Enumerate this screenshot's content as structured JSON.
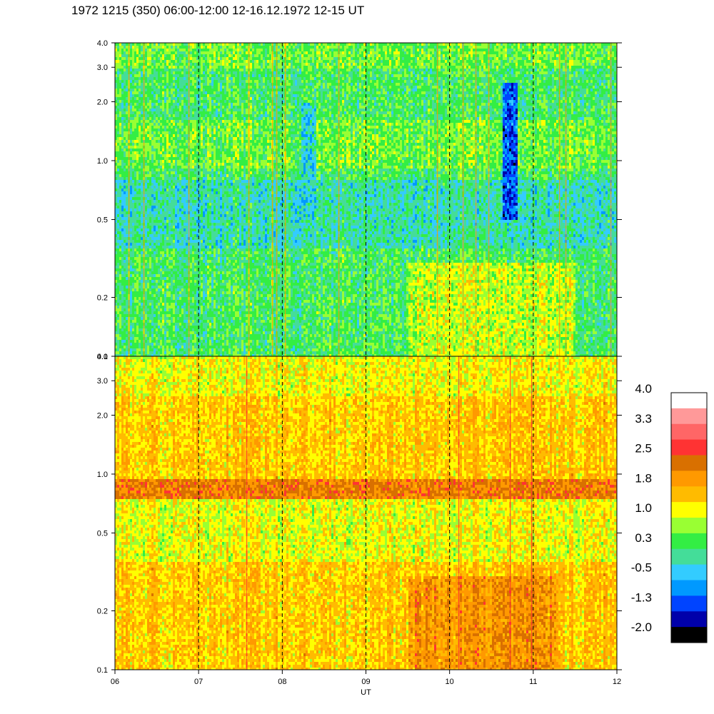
{
  "title": "1972 1215 (350) 06:00-12:00 12-16.12.1972  12-15 UT",
  "chart_data": [
    {
      "type": "heatmap",
      "panel": "upper",
      "xlim": [
        "06",
        "12"
      ],
      "ylim": [
        0.1,
        4.0
      ],
      "y_scale": "log",
      "ytick_labels": [
        "0.1",
        "0.2",
        "0.5",
        "1.0",
        "2.0",
        "3.0",
        "4.0"
      ],
      "ytick_values": [
        0.1,
        0.2,
        0.5,
        1.0,
        2.0,
        3.0,
        4.0
      ],
      "dominant_level": 0.3,
      "dips": [
        {
          "x_hour": 10.7,
          "y_range": [
            0.5,
            2.5
          ],
          "level": -1.3
        },
        {
          "x_hour": 8.3,
          "y_range": [
            0.5,
            2.0
          ],
          "level": -0.5
        }
      ]
    },
    {
      "type": "heatmap",
      "panel": "lower",
      "xlim": [
        "06",
        "12"
      ],
      "ylim": [
        0.1,
        4.0
      ],
      "y_scale": "log",
      "ytick_labels": [
        "0.1",
        "0.2",
        "0.5",
        "1.0",
        "2.0",
        "3.0",
        "4.0"
      ],
      "ytick_values": [
        0.1,
        0.2,
        0.5,
        1.0,
        2.0,
        3.0,
        4.0
      ],
      "dominant_level": 1.8,
      "band": {
        "y_range": [
          0.75,
          0.95
        ],
        "level": 2.2
      }
    }
  ],
  "x_axis": {
    "label": "UT",
    "ticks": [
      "06",
      "07",
      "08",
      "09",
      "10",
      "11",
      "12"
    ],
    "tick_hours": [
      6,
      7,
      8,
      9,
      10,
      11,
      12
    ],
    "dashed_hours": [
      7,
      8,
      9,
      10,
      11
    ]
  },
  "colorbar": {
    "labels": [
      "4.0",
      "3.3",
      "2.5",
      "1.8",
      "1.0",
      "0.3",
      "-0.5",
      "-1.3",
      "-2.0"
    ],
    "colors_top_to_bottom": [
      "#ffffff",
      "#ff9999",
      "#ff6666",
      "#ff3333",
      "#d97000",
      "#ff9900",
      "#ffbb00",
      "#ffff00",
      "#99ff33",
      "#33ee44",
      "#44dd99",
      "#33ccff",
      "#0099ff",
      "#0044ff",
      "#0000aa",
      "#000000"
    ]
  }
}
